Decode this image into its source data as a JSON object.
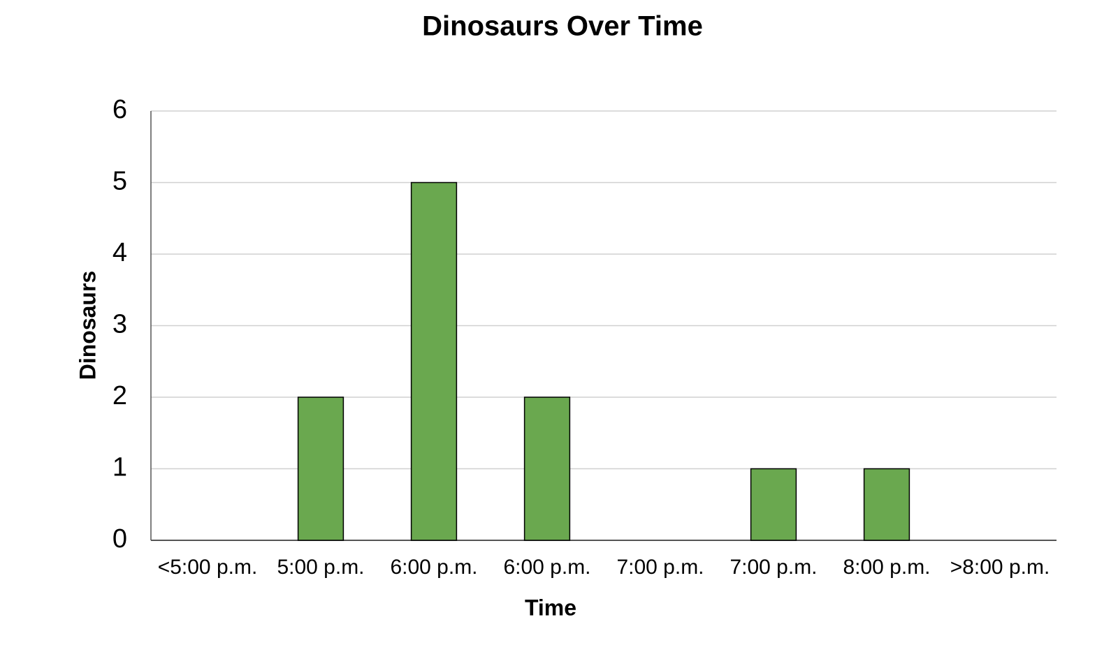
{
  "chart_data": {
    "type": "bar",
    "title": "Dinosaurs Over Time",
    "x_label": "Time",
    "y_label": "Dinosaurs",
    "categories": [
      "<5:00 p.m.",
      "5:00 p.m.",
      "6:00 p.m.",
      "6:00 p.m.",
      "7:00 p.m.",
      "7:00 p.m.",
      "8:00 p.m.",
      ">8:00 p.m."
    ],
    "values": [
      0,
      2,
      5,
      2,
      0,
      1,
      1,
      0
    ],
    "color": "#6aa84f",
    "ylim": [
      0,
      6
    ],
    "yticks": [
      0,
      1,
      2,
      3,
      4,
      5,
      6
    ],
    "grid": true
  }
}
